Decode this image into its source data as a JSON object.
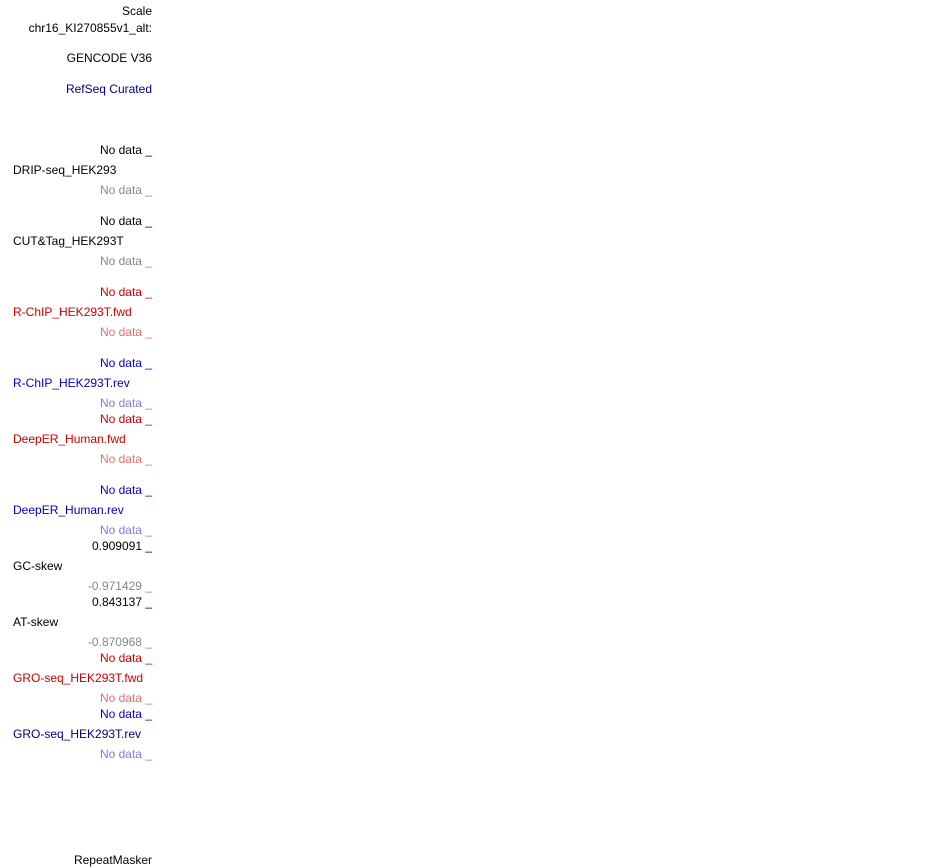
{
  "header": {
    "scale": "Scale",
    "chrom": "chr16_KI270855v1_alt:"
  },
  "tracks": {
    "gencode": "GENCODE V36",
    "refseq": "RefSeq Curated",
    "drip": {
      "name": "DRIP-seq_HEK293",
      "top": "No data _",
      "bottom": "No data _"
    },
    "cuttag": {
      "name": "CUT&Tag_HEK293T",
      "top": "No data _",
      "bottom": "No data _"
    },
    "rchip_fwd": {
      "name": "R-ChIP_HEK293T.fwd",
      "top": "No data _",
      "bottom": "No data _"
    },
    "rchip_rev": {
      "name": "R-ChIP_HEK293T.rev",
      "top": "No data _",
      "bottom": "No data _"
    },
    "deeper_fwd": {
      "name": "DeepER_Human.fwd",
      "top": "No data _",
      "bottom": "No data _"
    },
    "deeper_rev": {
      "name": "DeepER_Human.rev",
      "top": "No data _",
      "bottom": "No data _"
    },
    "gcskew": {
      "name": "GC-skew",
      "top": "0.909091 _",
      "bottom": "-0.971429 _"
    },
    "atskew": {
      "name": "AT-skew",
      "top": "0.843137 _",
      "bottom": "-0.870968 _"
    },
    "gro_fwd": {
      "name": "GRO-seq_HEK293T.fwd",
      "top": "No data _",
      "bottom": "No data _"
    },
    "gro_rev": {
      "name": "GRO-seq_HEK293T.rev",
      "top": "No data _",
      "bottom": "No data _"
    },
    "repeatmasker": "RepeatMasker"
  }
}
